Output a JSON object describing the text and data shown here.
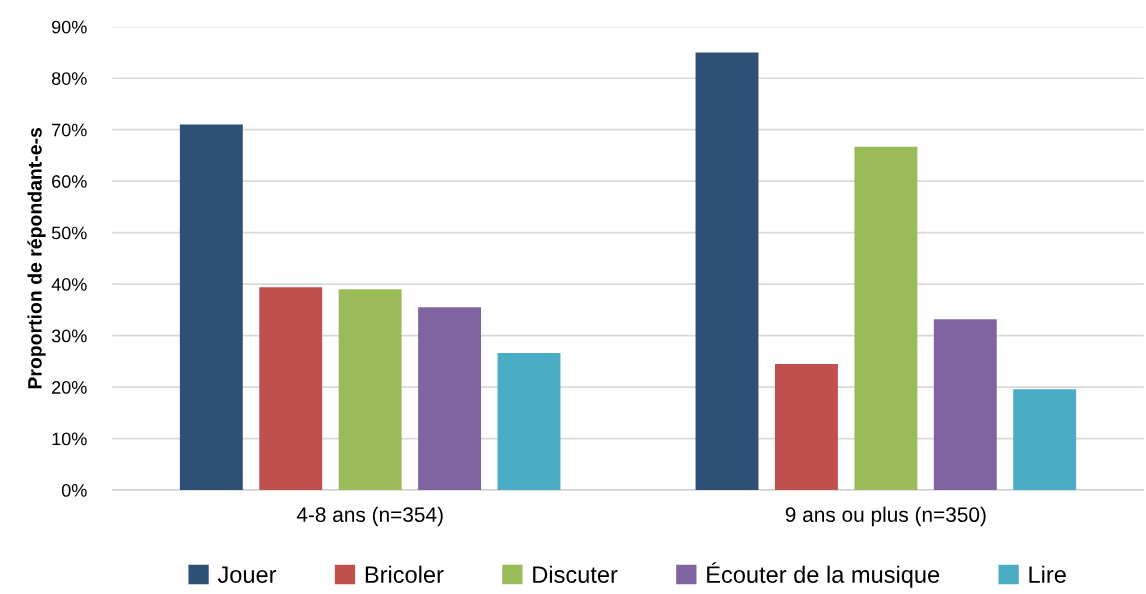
{
  "chart_data": {
    "type": "bar",
    "ylabel": "Proportion de répondant-e-s",
    "categories": [
      "4-8 ans (n=354)",
      "9 ans ou plus (n=350)"
    ],
    "series": [
      {
        "name": "Jouer",
        "color": "#2e4f76",
        "values": [
          71,
          85
        ]
      },
      {
        "name": "Bricoler",
        "color": "#c0504d",
        "values": [
          39.4,
          24.5
        ]
      },
      {
        "name": "Discuter",
        "color": "#9bbb59",
        "values": [
          39,
          66.7
        ]
      },
      {
        "name": "Écouter de la musique",
        "color": "#8064a2",
        "values": [
          35.5,
          33.2
        ]
      },
      {
        "name": "Lire",
        "color": "#4bacc6",
        "values": [
          26.6,
          19.6
        ]
      }
    ],
    "ylim": [
      0,
      90
    ],
    "yticks": [
      {
        "value": 0,
        "label": "0%"
      },
      {
        "value": 10,
        "label": "10%"
      },
      {
        "value": 20,
        "label": "20%"
      },
      {
        "value": 30,
        "label": "30%"
      },
      {
        "value": 40,
        "label": "40%"
      },
      {
        "value": 50,
        "label": "50%"
      },
      {
        "value": 60,
        "label": "60%"
      },
      {
        "value": 70,
        "label": "70%"
      },
      {
        "value": 80,
        "label": "80%"
      },
      {
        "value": 90,
        "label": "90%"
      }
    ],
    "grid": "y",
    "legend": "bottom"
  }
}
